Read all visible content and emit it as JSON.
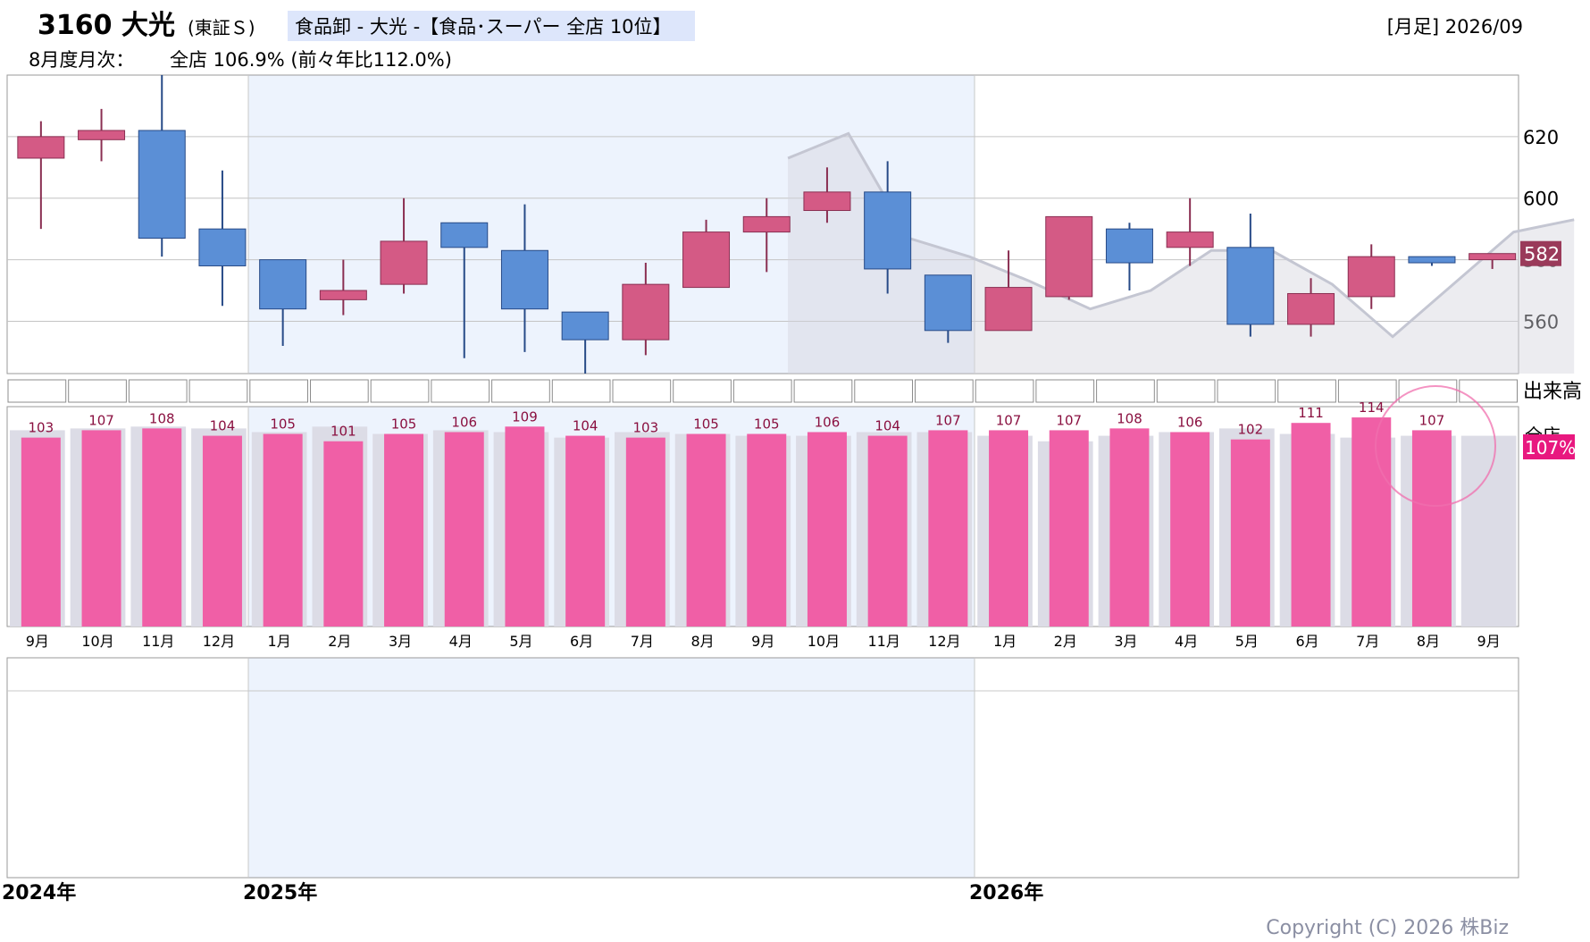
{
  "header": {
    "ticker": "3160 大光",
    "market": "(東証Ｓ)",
    "sector_label": "食品卸 - 大光 -【食品･スーパー 全店 10位】",
    "period": "[月足] 2026/09",
    "monthly_label": "8月度月次：",
    "monthly_value": "全店 106.9% (前々年比112.0%)"
  },
  "volume_label": "出来高",
  "ratio_label": "全店",
  "latest_ratio_badge": "107%",
  "copyright": "Copyright (C) 2026 株Biz",
  "colors": {
    "up": "#d45a85",
    "down": "#5b8fd6",
    "bar": "#f05fa6",
    "prev_bar": "#dcdce6",
    "badge": "#e8187f",
    "price_badge": "#9a3a5a",
    "shade": "#edf3fd"
  },
  "chart_data": [
    {
      "type": "candlestick",
      "title": "3160 大光",
      "timeframe": "月足",
      "y_ticks": [
        560,
        580,
        600,
        620
      ],
      "ylim": [
        543,
        640
      ],
      "last_price": 582,
      "years": [
        "2024年",
        "2025年",
        "2026年"
      ],
      "months": [
        "9月",
        "10月",
        "11月",
        "12月",
        "1月",
        "2月",
        "3月",
        "4月",
        "5月",
        "6月",
        "7月",
        "8月",
        "9月",
        "10月",
        "11月",
        "12月",
        "1月",
        "2月",
        "3月",
        "4月",
        "5月",
        "6月",
        "7月",
        "8月",
        "9月"
      ],
      "candles": [
        {
          "o": 613,
          "h": 625,
          "l": 590,
          "c": 620
        },
        {
          "o": 619,
          "h": 629,
          "l": 612,
          "c": 622
        },
        {
          "o": 622,
          "h": 640,
          "l": 581,
          "c": 587
        },
        {
          "o": 590,
          "h": 609,
          "l": 565,
          "c": 578
        },
        {
          "o": 580,
          "h": 580,
          "l": 552,
          "c": 564
        },
        {
          "o": 567,
          "h": 580,
          "l": 562,
          "c": 570
        },
        {
          "o": 572,
          "h": 600,
          "l": 569,
          "c": 586
        },
        {
          "o": 592,
          "h": 592,
          "l": 548,
          "c": 584
        },
        {
          "o": 583,
          "h": 598,
          "l": 550,
          "c": 564
        },
        {
          "o": 563,
          "h": 563,
          "l": 543,
          "c": 554
        },
        {
          "o": 554,
          "h": 579,
          "l": 549,
          "c": 572
        },
        {
          "o": 571,
          "h": 593,
          "l": 571,
          "c": 589
        },
        {
          "o": 589,
          "h": 600,
          "l": 576,
          "c": 594
        },
        {
          "o": 596,
          "h": 610,
          "l": 592,
          "c": 602
        },
        {
          "o": 602,
          "h": 612,
          "l": 569,
          "c": 577
        },
        {
          "o": 575,
          "h": 575,
          "l": 553,
          "c": 557
        },
        {
          "o": 557,
          "h": 583,
          "l": 557,
          "c": 571
        },
        {
          "o": 568,
          "h": 594,
          "l": 567,
          "c": 594
        },
        {
          "o": 590,
          "h": 592,
          "l": 570,
          "c": 579
        },
        {
          "o": 584,
          "h": 600,
          "l": 578,
          "c": 589
        },
        {
          "o": 584,
          "h": 595,
          "l": 555,
          "c": 559
        },
        {
          "o": 559,
          "h": 574,
          "l": 555,
          "c": 569
        },
        {
          "o": 568,
          "h": 585,
          "l": 564,
          "c": 581
        },
        {
          "o": 581,
          "h": 581,
          "l": 578,
          "c": 579
        },
        {
          "o": 580,
          "h": 582,
          "l": 577,
          "c": 582
        }
      ],
      "prior_year_series": [
        {
          "month": 14,
          "v": 613
        },
        {
          "month": 15,
          "v": 621
        },
        {
          "month": 16,
          "v": 587
        },
        {
          "month": 17,
          "v": 581
        },
        {
          "month": 18,
          "v": 573
        },
        {
          "month": 19,
          "v": 564
        },
        {
          "month": 20,
          "v": 570
        },
        {
          "month": 21,
          "v": 583
        },
        {
          "month": 22,
          "v": 583
        },
        {
          "month": 23,
          "v": 572
        },
        {
          "month": 24,
          "v": 555
        },
        {
          "month": 25,
          "v": 572
        },
        {
          "month": 26,
          "v": 589
        },
        {
          "month": 27,
          "v": 593
        }
      ]
    },
    {
      "type": "bar",
      "title": "全店",
      "categories": [
        "9月",
        "10月",
        "11月",
        "12月",
        "1月",
        "2月",
        "3月",
        "4月",
        "5月",
        "6月",
        "7月",
        "8月",
        "9月",
        "10月",
        "11月",
        "12月",
        "1月",
        "2月",
        "3月",
        "4月",
        "5月",
        "6月",
        "7月",
        "8月",
        "9月"
      ],
      "series": [
        {
          "name": "全店",
          "values": [
            103,
            107,
            108,
            104,
            105,
            101,
            105,
            106,
            109,
            104,
            103,
            105,
            105,
            106,
            104,
            107,
            107,
            107,
            108,
            106,
            102,
            111,
            114,
            107,
            null
          ]
        }
      ],
      "prior_year_values": [
        107,
        108,
        109,
        108,
        106,
        109,
        105,
        107,
        106,
        103,
        106,
        105,
        104,
        104,
        106,
        106,
        104,
        101,
        104,
        106,
        108,
        105,
        103,
        104,
        104
      ],
      "labels": [
        "103",
        "107",
        "108",
        "104",
        "105",
        "101",
        "105",
        "106",
        "109",
        "104",
        "103",
        "105",
        "105",
        "106",
        "104",
        "107",
        "107",
        "107",
        "108",
        "106",
        "102",
        "111",
        "114",
        "107",
        ""
      ],
      "ylim": [
        0,
        115
      ]
    }
  ]
}
